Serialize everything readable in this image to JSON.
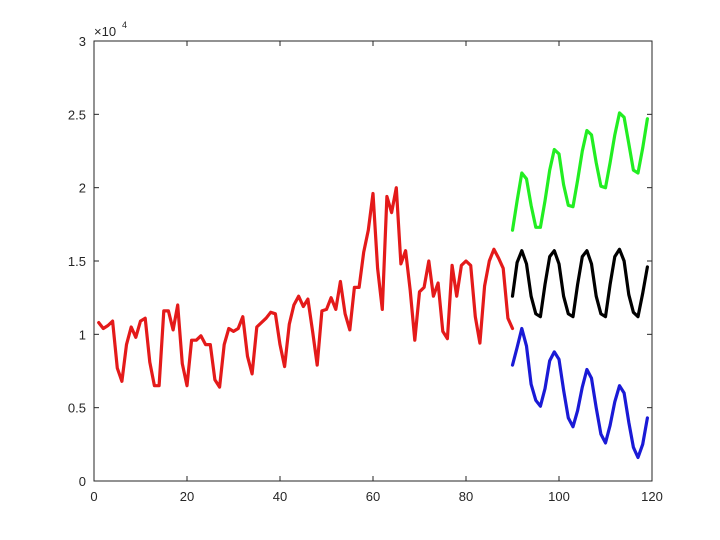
{
  "chart_data": {
    "type": "line",
    "title": "",
    "xlabel": "",
    "ylabel": "",
    "xlim": [
      0,
      120
    ],
    "ylim": [
      0,
      30000
    ],
    "grid": false,
    "y_exponent_label": {
      "base": "×10",
      "power": "4"
    },
    "x_ticks": [
      0,
      20,
      40,
      60,
      80,
      100,
      120
    ],
    "x_tick_labels": [
      "0",
      "20",
      "40",
      "60",
      "80",
      "100",
      "120"
    ],
    "y_ticks": [
      0,
      5000,
      10000,
      15000,
      20000,
      25000,
      30000
    ],
    "y_tick_labels": [
      "0",
      "0.5",
      "1",
      "1.5",
      "2",
      "2.5",
      "3"
    ],
    "colors": {
      "observed": "#e41a1a",
      "upper": "#22ee22",
      "forecast": "#000000",
      "lower": "#1a1ad6",
      "axis": "#262626"
    },
    "series": [
      {
        "key": "observed",
        "x": [
          1,
          2,
          3,
          4,
          5,
          6,
          7,
          8,
          9,
          10,
          11,
          12,
          13,
          14,
          15,
          16,
          17,
          18,
          19,
          20,
          21,
          22,
          23,
          24,
          25,
          26,
          27,
          28,
          29,
          30,
          31,
          32,
          33,
          34,
          35,
          36,
          37,
          38,
          39,
          40,
          41,
          42,
          43,
          44,
          45,
          46,
          47,
          48,
          49,
          50,
          51,
          52,
          53,
          54,
          55,
          56,
          57,
          58,
          59,
          60,
          61,
          62,
          63,
          64,
          65,
          66,
          67,
          68,
          69,
          70,
          71,
          72,
          73,
          74,
          75,
          76,
          77,
          78,
          79,
          80,
          81,
          82,
          83,
          84,
          85,
          86,
          87,
          88,
          89,
          90
        ],
        "y": [
          10800,
          10400,
          10600,
          10900,
          7700,
          6800,
          9300,
          10500,
          9800,
          10900,
          11100,
          8100,
          6500,
          6500,
          11600,
          11600,
          10300,
          12000,
          8000,
          6500,
          9600,
          9600,
          9900,
          9300,
          9300,
          6900,
          6400,
          9300,
          10400,
          10200,
          10400,
          11200,
          8500,
          7300,
          10500,
          10800,
          11100,
          11500,
          11400,
          9300,
          7800,
          10700,
          12000,
          12600,
          11900,
          12400,
          10200,
          7900,
          11600,
          11700,
          12500,
          11700,
          13600,
          11400,
          10300,
          13200,
          13200,
          15600,
          17100,
          19600,
          14500,
          11700,
          19400,
          18300,
          20000,
          14800,
          15700,
          13000,
          9600,
          12900,
          13200,
          15000,
          12600,
          13500,
          10200,
          9700,
          14700,
          12600,
          14700,
          15000,
          14700,
          11200,
          9400,
          13300,
          15000,
          15800,
          15200,
          14500,
          11100,
          10400
        ]
      },
      {
        "key": "upper",
        "x": [
          90,
          91,
          92,
          93,
          94,
          95,
          96,
          97,
          98,
          99,
          100,
          101,
          102,
          103,
          104,
          105,
          106,
          107,
          108,
          109,
          110,
          111,
          112,
          113,
          114,
          115,
          116,
          117,
          118,
          119
        ],
        "y": [
          17100,
          19100,
          21000,
          20600,
          18800,
          17300,
          17300,
          19100,
          21200,
          22600,
          22300,
          20200,
          18800,
          18700,
          20500,
          22500,
          23900,
          23600,
          21700,
          20100,
          20000,
          21700,
          23600,
          25100,
          24800,
          23000,
          21200,
          21000,
          22700,
          24700
        ]
      },
      {
        "key": "forecast",
        "x": [
          90,
          91,
          92,
          93,
          94,
          95,
          96,
          97,
          98,
          99,
          100,
          101,
          102,
          103,
          104,
          105,
          106,
          107,
          108,
          109,
          110,
          111,
          112,
          113,
          114,
          115,
          116,
          117,
          118,
          119
        ],
        "y": [
          12600,
          14900,
          15700,
          14800,
          12600,
          11400,
          11200,
          13400,
          15300,
          15700,
          14800,
          12600,
          11400,
          11200,
          13400,
          15300,
          15700,
          14800,
          12600,
          11400,
          11200,
          13400,
          15300,
          15800,
          15000,
          12700,
          11500,
          11200,
          12800,
          14600
        ]
      },
      {
        "key": "lower",
        "x": [
          90,
          91,
          92,
          93,
          94,
          95,
          96,
          97,
          98,
          99,
          100,
          101,
          102,
          103,
          104,
          105,
          106,
          107,
          108,
          109,
          110,
          111,
          112,
          113,
          114,
          115,
          116,
          117,
          118,
          119
        ],
        "y": [
          7900,
          9100,
          10400,
          9200,
          6600,
          5500,
          5100,
          6300,
          8200,
          8800,
          8300,
          6200,
          4300,
          3700,
          4800,
          6400,
          7600,
          7000,
          5000,
          3200,
          2600,
          3800,
          5400,
          6500,
          6000,
          4000,
          2300,
          1600,
          2500,
          4300
        ]
      }
    ]
  }
}
